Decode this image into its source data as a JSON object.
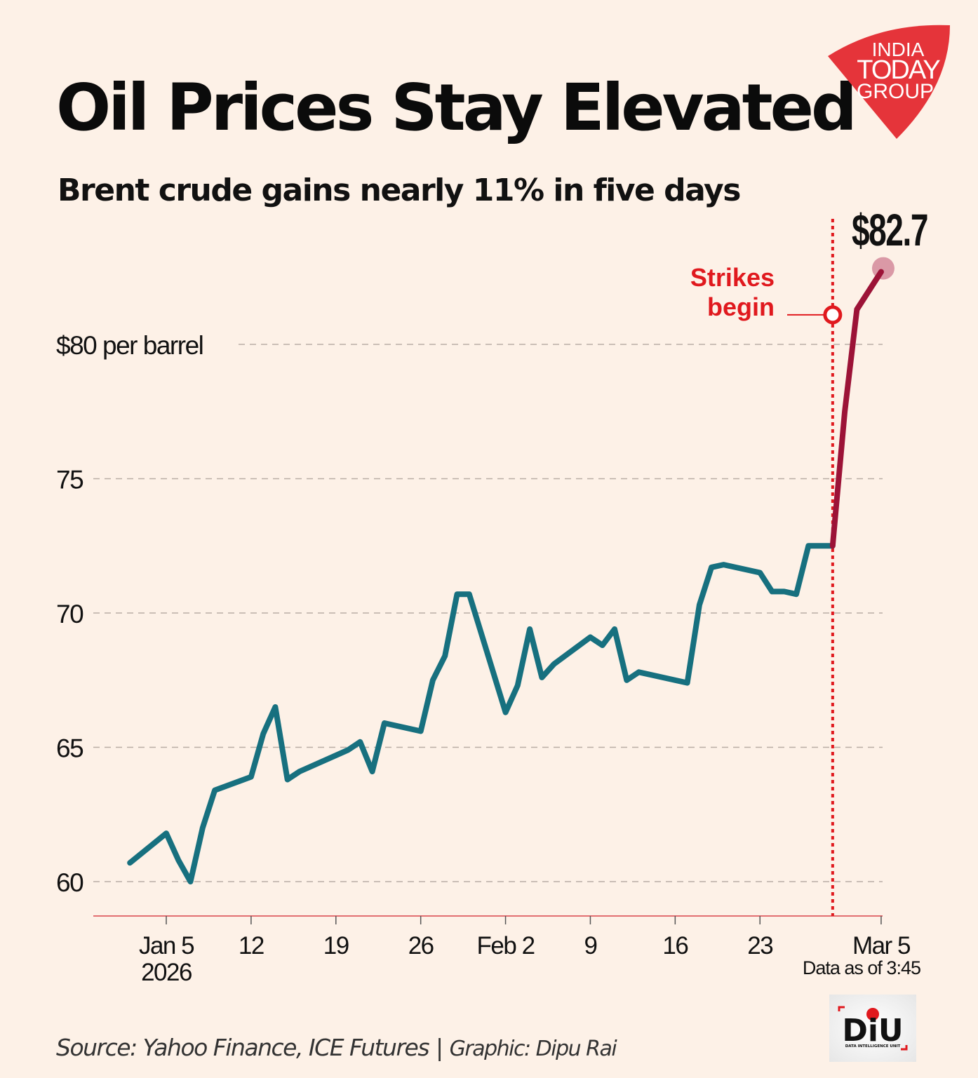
{
  "title": "Oil Prices Stay Elevated",
  "subtitle": "Brent crude gains nearly 11% in five days",
  "logo_text": [
    "INDIA",
    "TODAY",
    "GROUP"
  ],
  "footer": {
    "source": "Source: Yahoo Finance, ICE Futures",
    "separator": "|",
    "graphic": "Graphic: Dipu Rai",
    "diu_logo_text": "DiU",
    "diu_logo_subtext": "DATA INTELLIGENCE UNIT"
  },
  "colors": {
    "background": "#fdf1e7",
    "pre_strike_line": "#17707f",
    "post_strike_line": "#9c1337",
    "annotation_red": "#e0191e",
    "logo_red": "#e5343a"
  },
  "chart_data": {
    "type": "line",
    "title": "Oil Prices Stay Elevated",
    "subtitle": "Brent crude gains nearly 11% in five days",
    "ylabel": "",
    "xlabel": "",
    "ylim": [
      59,
      84
    ],
    "xlim": [
      "2025-12-30",
      "2026-03-05"
    ],
    "grid": "horizontal dashed",
    "y_ticks": [
      {
        "value": 60,
        "label": "60"
      },
      {
        "value": 65,
        "label": "65"
      },
      {
        "value": 70,
        "label": "70"
      },
      {
        "value": 75,
        "label": "75"
      },
      {
        "value": 80,
        "label": "$80 per barrel"
      }
    ],
    "x_ticks": [
      {
        "date": "2026-01-05",
        "label": "Jan 5",
        "sublabel": "2026"
      },
      {
        "date": "2026-01-12",
        "label": "12"
      },
      {
        "date": "2026-01-19",
        "label": "19"
      },
      {
        "date": "2026-01-26",
        "label": "26"
      },
      {
        "date": "2026-02-02",
        "label": "Feb 2"
      },
      {
        "date": "2026-02-09",
        "label": "9"
      },
      {
        "date": "2026-02-16",
        "label": "16"
      },
      {
        "date": "2026-02-23",
        "label": "23"
      },
      {
        "date": "2026-03-05",
        "label": "Mar 5",
        "sublabel": "Data as of 3:45"
      }
    ],
    "series": [
      {
        "segment": "before strikes",
        "color": "#17707f",
        "points": [
          [
            "2026-01-02",
            60.7
          ],
          [
            "2026-01-05",
            61.8
          ],
          [
            "2026-01-06",
            60.8
          ],
          [
            "2026-01-07",
            60.0
          ],
          [
            "2026-01-08",
            62.0
          ],
          [
            "2026-01-09",
            63.4
          ],
          [
            "2026-01-12",
            63.9
          ],
          [
            "2026-01-13",
            65.5
          ],
          [
            "2026-01-14",
            66.5
          ],
          [
            "2026-01-15",
            63.8
          ],
          [
            "2026-01-16",
            64.1
          ],
          [
            "2026-01-20",
            64.9
          ],
          [
            "2026-01-21",
            65.2
          ],
          [
            "2026-01-22",
            64.1
          ],
          [
            "2026-01-23",
            65.9
          ],
          [
            "2026-01-26",
            65.6
          ],
          [
            "2026-01-27",
            67.5
          ],
          [
            "2026-01-28",
            68.4
          ],
          [
            "2026-01-29",
            70.7
          ],
          [
            "2026-01-30",
            70.7
          ],
          [
            "2026-02-02",
            66.3
          ],
          [
            "2026-02-03",
            67.3
          ],
          [
            "2026-02-04",
            69.4
          ],
          [
            "2026-02-05",
            67.6
          ],
          [
            "2026-02-06",
            68.1
          ],
          [
            "2026-02-09",
            69.1
          ],
          [
            "2026-02-10",
            68.8
          ],
          [
            "2026-02-11",
            69.4
          ],
          [
            "2026-02-12",
            67.5
          ],
          [
            "2026-02-13",
            67.8
          ],
          [
            "2026-02-17",
            67.4
          ],
          [
            "2026-02-18",
            70.3
          ],
          [
            "2026-02-19",
            71.7
          ],
          [
            "2026-02-20",
            71.8
          ],
          [
            "2026-02-23",
            71.5
          ],
          [
            "2026-02-24",
            70.8
          ],
          [
            "2026-02-25",
            70.8
          ],
          [
            "2026-02-26",
            70.7
          ],
          [
            "2026-02-27",
            72.5
          ],
          [
            "2026-03-01",
            72.5
          ]
        ]
      },
      {
        "segment": "after strikes",
        "color": "#9c1337",
        "points": [
          [
            "2026-03-01",
            72.5
          ],
          [
            "2026-03-02",
            77.5
          ],
          [
            "2026-03-03",
            81.3
          ],
          [
            "2026-03-05",
            82.7
          ]
        ]
      }
    ],
    "annotations": [
      {
        "type": "vertical-line",
        "date": "2026-03-01",
        "label": [
          "Strikes",
          "begin"
        ],
        "marker_value": 81.1
      },
      {
        "type": "end-label",
        "date": "2026-03-05",
        "value": 82.7,
        "label": "$82.7"
      }
    ]
  }
}
